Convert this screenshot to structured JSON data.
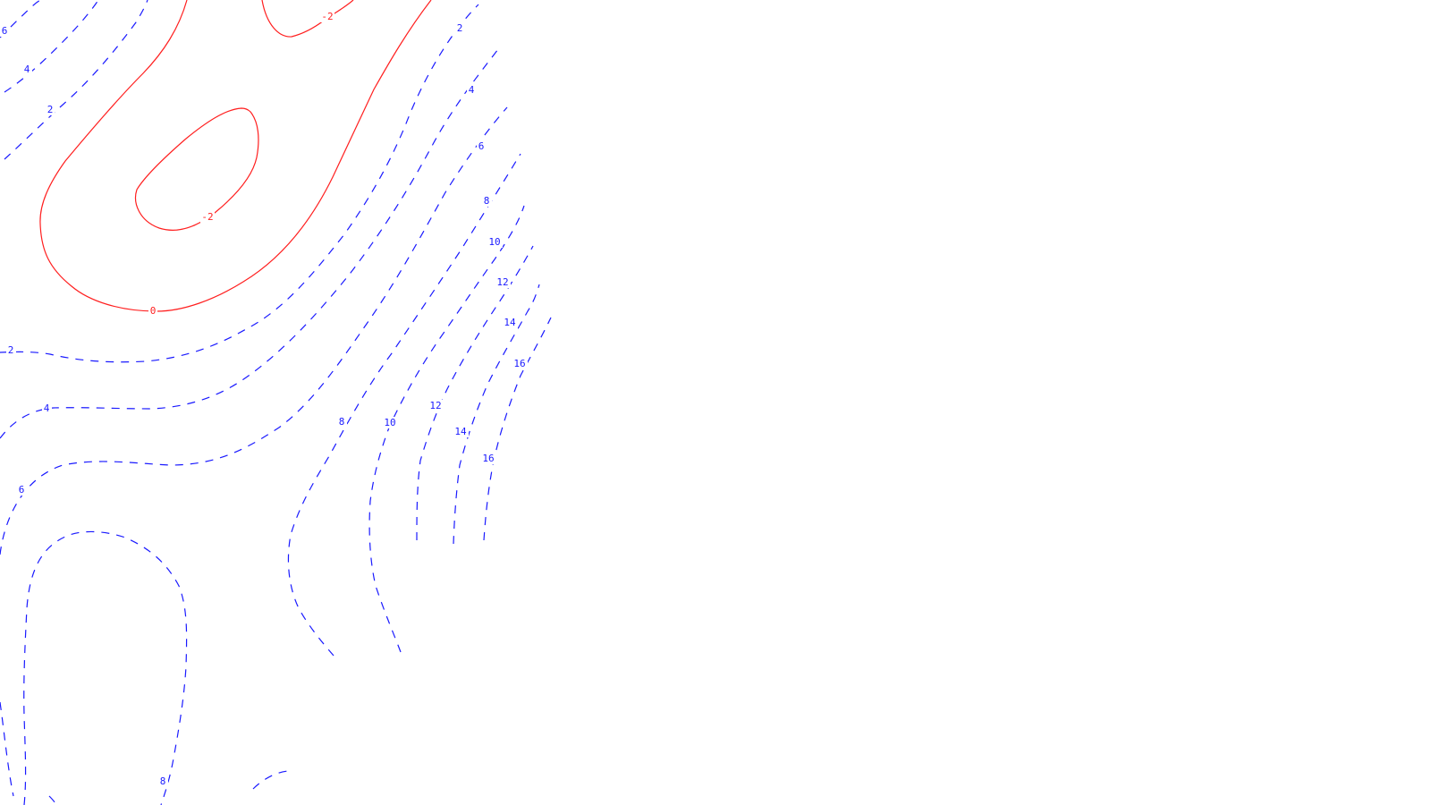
{
  "colors": {
    "negative_contour": "#ff1f1f",
    "positive_contour": "#1a1aff",
    "background": "#ffffff"
  },
  "line_styles": {
    "negative": "solid",
    "positive": "dashed"
  },
  "contours": [
    {
      "id": "neg2-top",
      "level": -2,
      "label": "-2",
      "polarity": "negative"
    },
    {
      "id": "neg2-loop",
      "level": -2,
      "label": "-2",
      "polarity": "negative"
    },
    {
      "id": "zero",
      "level": 0,
      "label": "0",
      "polarity": "negative"
    },
    {
      "id": "pos2-diag",
      "level": 2,
      "label": "2",
      "polarity": "positive"
    },
    {
      "id": "pos2-left",
      "level": 2,
      "label": "2",
      "polarity": "positive"
    },
    {
      "id": "pos4-diag",
      "level": 4,
      "label": "4",
      "polarity": "positive"
    },
    {
      "id": "pos4-left",
      "level": 4,
      "label": "4",
      "polarity": "positive"
    },
    {
      "id": "pos6-diag",
      "level": 6,
      "label": "6",
      "polarity": "positive"
    },
    {
      "id": "pos6-left",
      "level": 6,
      "label": "6",
      "polarity": "positive"
    },
    {
      "id": "pos6-corner",
      "level": 6,
      "label": "6",
      "polarity": "positive"
    },
    {
      "id": "pos8-diag",
      "level": 8,
      "label": "8",
      "polarity": "positive"
    },
    {
      "id": "pos8-loop",
      "level": 8,
      "label": "8",
      "polarity": "positive"
    },
    {
      "id": "pos10-diag",
      "level": 10,
      "label": "10",
      "polarity": "positive"
    },
    {
      "id": "pos12-diag",
      "level": 12,
      "label": "12",
      "polarity": "positive"
    },
    {
      "id": "pos14-diag",
      "level": 14,
      "label": "14",
      "polarity": "positive"
    },
    {
      "id": "pos16-diag",
      "level": 16,
      "label": "16",
      "polarity": "positive"
    }
  ]
}
